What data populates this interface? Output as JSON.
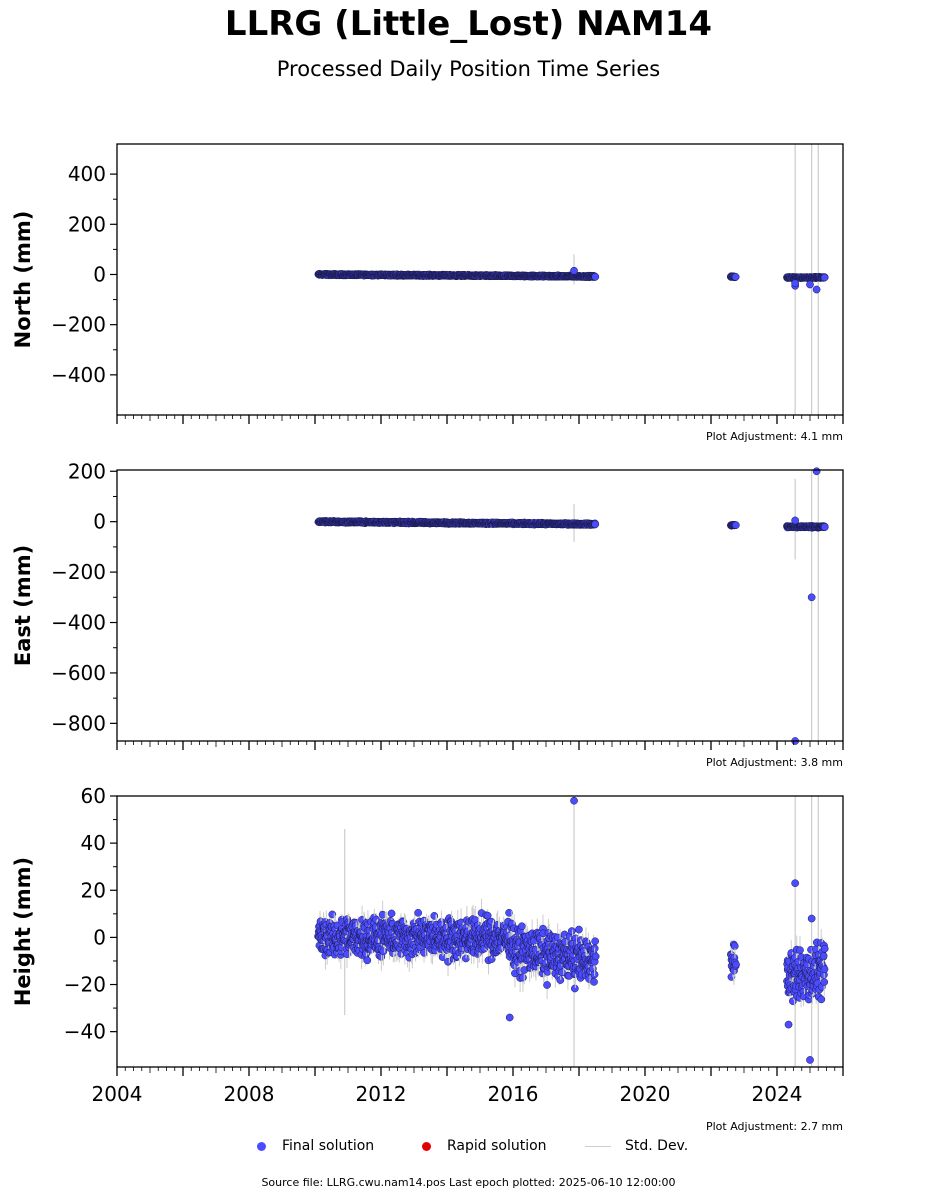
{
  "title": "LLRG (Little_Lost) NAM14",
  "subtitle": "Processed Daily Position Time Series",
  "footer": "Source file: LLRG.cwu.nam14.pos  Last epoch plotted: 2025-06-10 12:00:00",
  "legend": {
    "final_label": "Final solution",
    "rapid_label": "Rapid solution",
    "std_label": "Std. Dev.",
    "final_color": "#4b4bff",
    "rapid_color": "#e00000",
    "std_color": "#cccccc"
  },
  "chart_data": [
    {
      "type": "scatter",
      "ylabel": "North (mm)",
      "adjustment": "Plot Adjustment: 4.1 mm",
      "xlim": [
        2004,
        2026
      ],
      "ylim": [
        -560,
        520
      ],
      "yticks": [
        400,
        200,
        0,
        -200,
        -400
      ],
      "ytick_labels": [
        "400",
        "200",
        "0",
        "−200",
        "−400"
      ],
      "segments": [
        {
          "start": 2010.1,
          "end": 2018.5,
          "y_start": 0,
          "y_end": -8,
          "spread": 4
        },
        {
          "start": 2022.6,
          "end": 2022.75,
          "y_start": -9,
          "y_end": -9,
          "spread": 3
        },
        {
          "start": 2024.3,
          "end": 2025.45,
          "y_start": -12,
          "y_end": -12,
          "spread": 4
        }
      ],
      "outliers": [
        [
          2017.85,
          15
        ],
        [
          2024.55,
          -45
        ],
        [
          2024.55,
          -35
        ],
        [
          2025.0,
          -40
        ],
        [
          2025.2,
          -60
        ]
      ],
      "std_lines": [
        [
          2017.85,
          -40,
          80
        ],
        [
          2024.55,
          -560,
          520
        ],
        [
          2025.05,
          -560,
          520
        ],
        [
          2025.25,
          -560,
          520
        ]
      ]
    },
    {
      "type": "scatter",
      "ylabel": "East (mm)",
      "adjustment": "Plot Adjustment: 3.8 mm",
      "xlim": [
        2004,
        2026
      ],
      "ylim": [
        -870,
        205
      ],
      "yticks": [
        200,
        0,
        -200,
        -400,
        -600,
        -800
      ],
      "ytick_labels": [
        "200",
        "0",
        "−200",
        "−400",
        "−600",
        "−800"
      ],
      "segments": [
        {
          "start": 2010.1,
          "end": 2018.5,
          "y_start": 0,
          "y_end": -10,
          "spread": 5
        },
        {
          "start": 2022.6,
          "end": 2022.75,
          "y_start": -14,
          "y_end": -14,
          "spread": 3
        },
        {
          "start": 2024.3,
          "end": 2025.45,
          "y_start": -20,
          "y_end": -20,
          "spread": 5
        }
      ],
      "outliers": [
        [
          2024.55,
          5
        ],
        [
          2025.2,
          200
        ],
        [
          2025.05,
          -300
        ],
        [
          2024.55,
          -870
        ]
      ],
      "std_lines": [
        [
          2017.85,
          -80,
          70
        ],
        [
          2024.55,
          -150,
          170
        ],
        [
          2025.05,
          -870,
          205
        ],
        [
          2025.25,
          -870,
          205
        ]
      ]
    },
    {
      "type": "scatter",
      "ylabel": "Height (mm)",
      "adjustment": "Plot Adjustment: 2.7 mm",
      "xlim": [
        2004,
        2026
      ],
      "ylim": [
        -55,
        60
      ],
      "xticks": [
        2004,
        2008,
        2012,
        2016,
        2020,
        2024
      ],
      "xtick_labels": [
        "2004",
        "2008",
        "2012",
        "2016",
        "2020",
        "2024"
      ],
      "yticks": [
        60,
        40,
        20,
        0,
        -20,
        -40
      ],
      "ytick_labels": [
        "60",
        "40",
        "20",
        "0",
        "−20",
        "−40"
      ],
      "segments": [
        {
          "start": 2010.1,
          "end": 2016.0,
          "y_start": 0,
          "y_end": 0,
          "spread": 12
        },
        {
          "start": 2016.0,
          "end": 2018.5,
          "y_start": -5,
          "y_end": -10,
          "spread": 14
        },
        {
          "start": 2022.6,
          "end": 2022.75,
          "y_start": -10,
          "y_end": -10,
          "spread": 10
        },
        {
          "start": 2024.3,
          "end": 2025.45,
          "y_start": -17,
          "y_end": -15,
          "spread": 16
        }
      ],
      "outliers": [
        [
          2017.85,
          58
        ],
        [
          2015.9,
          -34
        ],
        [
          2024.55,
          23
        ],
        [
          2025.0,
          -52
        ],
        [
          2024.35,
          -37
        ],
        [
          2025.05,
          8
        ]
      ],
      "std_lines": [
        [
          2010.9,
          -33,
          46
        ],
        [
          2017.85,
          -55,
          60
        ],
        [
          2024.55,
          -55,
          60
        ],
        [
          2025.05,
          -55,
          60
        ],
        [
          2025.25,
          -55,
          60
        ]
      ]
    }
  ]
}
